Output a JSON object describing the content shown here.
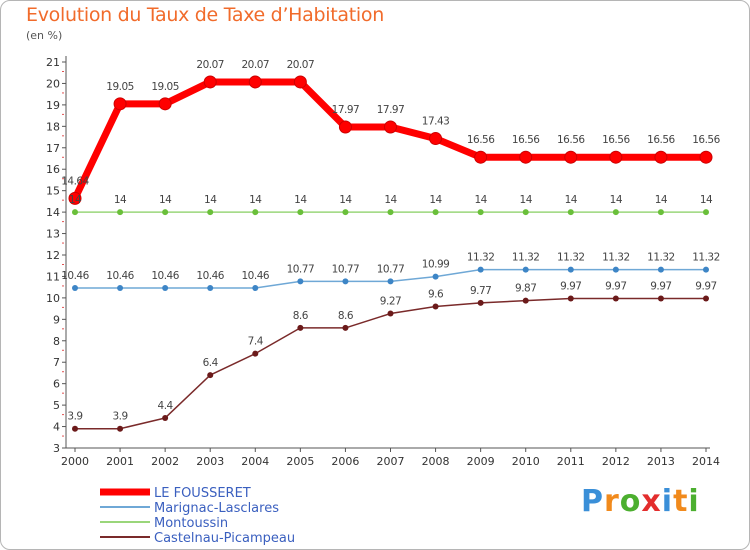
{
  "title": "Evolution du Taux de Taxe d’Habitation",
  "unit": "(en %)",
  "logo": {
    "text": "Proxiti",
    "colors": [
      "#3a8fd8",
      "#f18a1c",
      "#4caf2f",
      "#e32d2d",
      "#3a8fd8",
      "#f18a1c",
      "#4caf2f"
    ]
  },
  "chart_data": {
    "type": "line",
    "title": "Evolution du Taux de Taxe d’Habitation",
    "ylabel": "(en %)",
    "x": [
      "2000",
      "2001",
      "2002",
      "2003",
      "2004",
      "2005",
      "2006",
      "2007",
      "2008",
      "2009",
      "2010",
      "2011",
      "2012",
      "2013",
      "2014"
    ],
    "ylim": [
      3,
      21
    ],
    "yticks": [
      3,
      4,
      5,
      6,
      7,
      8,
      9,
      10,
      11,
      12,
      13,
      14,
      15,
      16,
      17,
      18,
      19,
      20,
      21
    ],
    "grid": false,
    "legend_position": "bottom-left",
    "series": [
      {
        "name": "LE FOUSSERET",
        "color": "#ff0000",
        "width": 7,
        "values": [
          14.64,
          19.05,
          19.05,
          20.07,
          20.07,
          20.07,
          17.97,
          17.97,
          17.43,
          16.56,
          16.56,
          16.56,
          16.56,
          16.56,
          16.56
        ],
        "labels": [
          "14.64",
          "19.05",
          "19.05",
          "20.07",
          "20.07",
          "20.07",
          "17.97",
          "17.97",
          "17.43",
          "16.56",
          "16.56",
          "16.56",
          "16.56",
          "16.56",
          "16.56"
        ]
      },
      {
        "name": "Marignac-Lasclares",
        "color": "#6fa8d6",
        "marker": "#3d85c6",
        "width": 1.5,
        "values": [
          10.46,
          10.46,
          10.46,
          10.46,
          10.46,
          10.77,
          10.77,
          10.77,
          10.99,
          11.32,
          11.32,
          11.32,
          11.32,
          11.32,
          11.32
        ],
        "labels": [
          "10.46",
          "10.46",
          "10.46",
          "10.46",
          "10.46",
          "10.77",
          "10.77",
          "10.77",
          "10.99",
          "11.32",
          "11.32",
          "11.32",
          "11.32",
          "11.32",
          "11.32"
        ]
      },
      {
        "name": "Montoussin",
        "color": "#9ad67a",
        "marker": "#6abf3a",
        "width": 1.5,
        "values": [
          14,
          14,
          14,
          14,
          14,
          14,
          14,
          14,
          14,
          14,
          14,
          14,
          14,
          14,
          14
        ],
        "labels": [
          "14",
          "14",
          "14",
          "14",
          "14",
          "14",
          "14",
          "14",
          "14",
          "14",
          "14",
          "14",
          "14",
          "14",
          "14"
        ]
      },
      {
        "name": "Castelnau-Picampeau",
        "color": "#7a2a2a",
        "marker": "#6b1a1a",
        "width": 1.5,
        "values": [
          3.9,
          3.9,
          4.4,
          6.4,
          7.4,
          8.6,
          8.6,
          9.27,
          9.6,
          9.77,
          9.87,
          9.97,
          9.97,
          9.97,
          9.97
        ],
        "labels": [
          "3.9",
          "3.9",
          "4.4",
          "6.4",
          "7.4",
          "8.6",
          "8.6",
          "9.27",
          "9.6",
          "9.77",
          "9.87",
          "9.97",
          "9.97",
          "9.97",
          "9.97"
        ]
      }
    ]
  }
}
